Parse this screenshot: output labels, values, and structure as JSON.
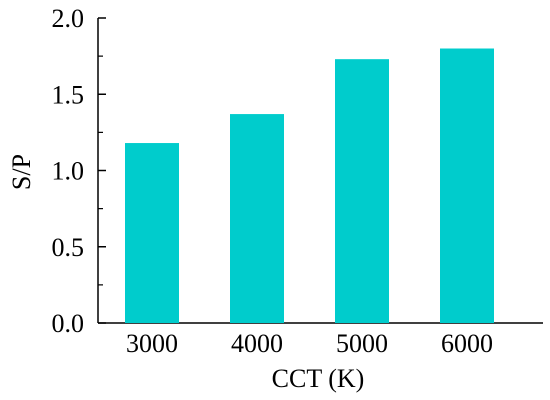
{
  "chart_data": {
    "type": "bar",
    "categories": [
      "3000",
      "4000",
      "5000",
      "6000"
    ],
    "values": [
      1.18,
      1.37,
      1.73,
      1.8
    ],
    "xlabel": "CCT (K)",
    "ylabel": "S/P",
    "ylim": [
      0,
      2.0
    ],
    "yticks": [
      "0.0",
      "0.5",
      "1.0",
      "1.5",
      "2.0"
    ],
    "bar_color": "#00CCCC",
    "grid": false
  }
}
